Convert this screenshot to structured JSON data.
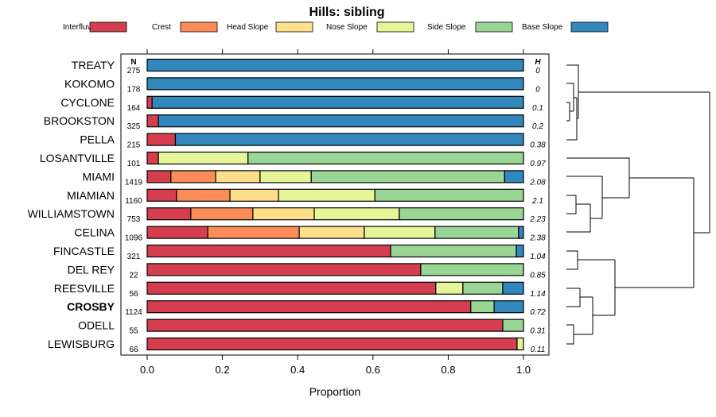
{
  "chart_data": {
    "type": "bar",
    "stacked": true,
    "orientation": "horizontal",
    "title": "Hills: sibling",
    "xlabel": "Proportion",
    "ylabel": "",
    "xlim": [
      0,
      1
    ],
    "x_ticks": [
      "0.0",
      "0.2",
      "0.4",
      "0.6",
      "0.8",
      "1.0"
    ],
    "legend_position": "top",
    "n_header": "N",
    "h_header": "H",
    "classes": [
      {
        "name": "Interfluve",
        "color": "#D53E4F"
      },
      {
        "name": "Crest",
        "color": "#FC8D59"
      },
      {
        "name": "Head Slope",
        "color": "#FEE08B"
      },
      {
        "name": "Nose Slope",
        "color": "#E6F598"
      },
      {
        "name": "Side Slope",
        "color": "#99D594"
      },
      {
        "name": "Base Slope",
        "color": "#3288BD"
      }
    ],
    "rows": [
      {
        "name": "TREATY",
        "n": "275",
        "h": "0",
        "bold": false,
        "values": [
          0,
          0,
          0,
          0,
          0,
          1.0
        ]
      },
      {
        "name": "KOKOMO",
        "n": "178",
        "h": "0",
        "bold": false,
        "values": [
          0,
          0,
          0,
          0,
          0,
          1.0
        ]
      },
      {
        "name": "CYCLONE",
        "n": "164",
        "h": "0.1",
        "bold": false,
        "values": [
          0.013,
          0,
          0,
          0,
          0,
          0.987
        ]
      },
      {
        "name": "BROOKSTON",
        "n": "325",
        "h": "0.2",
        "bold": false,
        "values": [
          0.03,
          0,
          0,
          0,
          0,
          0.97
        ]
      },
      {
        "name": "PELLA",
        "n": "215",
        "h": "0.38",
        "bold": false,
        "values": [
          0.075,
          0,
          0,
          0,
          0,
          0.925
        ]
      },
      {
        "name": "LOSANTVILLE",
        "n": "101",
        "h": "0.97",
        "bold": false,
        "values": [
          0.03,
          0,
          0,
          0.238,
          0.732,
          0
        ]
      },
      {
        "name": "MIAMI",
        "n": "1419",
        "h": "2.08",
        "bold": false,
        "values": [
          0.063,
          0.119,
          0.118,
          0.136,
          0.514,
          0.05
        ]
      },
      {
        "name": "MIAMIAN",
        "n": "1160",
        "h": "2.1",
        "bold": false,
        "values": [
          0.078,
          0.142,
          0.129,
          0.256,
          0.395,
          0
        ]
      },
      {
        "name": "WILLIAMSTOWN",
        "n": "753",
        "h": "2.23",
        "bold": false,
        "values": [
          0.116,
          0.165,
          0.163,
          0.226,
          0.33,
          0
        ]
      },
      {
        "name": "CELINA",
        "n": "1096",
        "h": "2.38",
        "bold": false,
        "values": [
          0.161,
          0.243,
          0.173,
          0.188,
          0.222,
          0.013
        ]
      },
      {
        "name": "FINCASTLE",
        "n": "321",
        "h": "1.04",
        "bold": false,
        "values": [
          0.647,
          0,
          0,
          0,
          0.334,
          0.019
        ]
      },
      {
        "name": "DEL REY",
        "n": "22",
        "h": "0.85",
        "bold": false,
        "values": [
          0.727,
          0,
          0,
          0,
          0.273,
          0
        ]
      },
      {
        "name": "REESVILLE",
        "n": "56",
        "h": "1.14",
        "bold": false,
        "values": [
          0.767,
          0,
          0,
          0.072,
          0.106,
          0.055
        ]
      },
      {
        "name": "CROSBY",
        "n": "1124",
        "h": "0.72",
        "bold": true,
        "values": [
          0.86,
          0,
          0,
          0,
          0.062,
          0.078
        ]
      },
      {
        "name": "ODELL",
        "n": "55",
        "h": "0.31",
        "bold": false,
        "values": [
          0.945,
          0,
          0,
          0,
          0.055,
          0
        ]
      },
      {
        "name": "LEWISBURG",
        "n": "66",
        "h": "0.11",
        "bold": false,
        "values": [
          0.983,
          0,
          0,
          0.017,
          0,
          0
        ]
      }
    ]
  }
}
